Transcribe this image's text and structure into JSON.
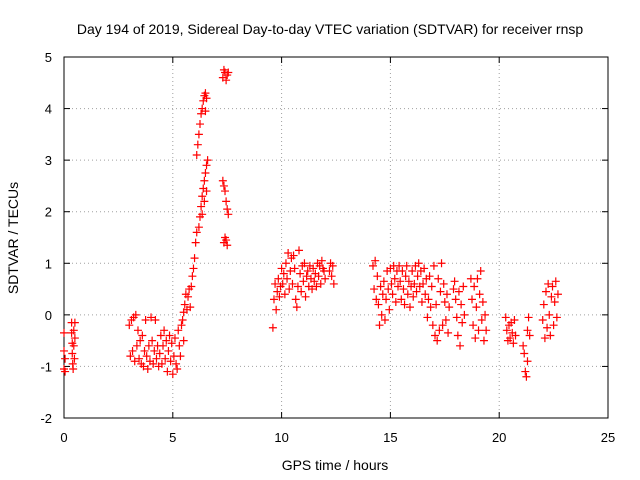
{
  "chart_data": {
    "type": "scatter",
    "title": "Day 194 of 2019, Sidereal Day-to-day VTEC variation (SDTVAR) for receiver rnsp",
    "xlabel": "GPS time / hours",
    "ylabel": "SDTVAR / TECUs",
    "xlim": [
      0,
      25
    ],
    "ylim": [
      -2,
      5
    ],
    "xticks": [
      "0",
      "5",
      "10",
      "15",
      "20",
      "25"
    ],
    "yticks": [
      "-2",
      "-1",
      "0",
      "1",
      "2",
      "3",
      "4",
      "5"
    ],
    "grid": true,
    "marker": "+",
    "series": [
      {
        "name": "SDTVAR",
        "color": "#ff0000",
        "points": [
          [
            0.0,
            -0.35
          ],
          [
            0.0,
            -0.7
          ],
          [
            0.0,
            -1.05
          ],
          [
            0.05,
            -0.85
          ],
          [
            0.05,
            -1.1
          ],
          [
            0.35,
            -0.15
          ],
          [
            0.35,
            -0.35
          ],
          [
            0.38,
            -0.55
          ],
          [
            0.38,
            -0.75
          ],
          [
            0.4,
            -0.95
          ],
          [
            0.42,
            -1.05
          ],
          [
            0.45,
            -0.6
          ],
          [
            0.45,
            -0.3
          ],
          [
            0.5,
            -0.15
          ],
          [
            0.5,
            -0.45
          ],
          [
            0.48,
            -0.85
          ],
          [
            3.0,
            -0.2
          ],
          [
            3.05,
            -0.8
          ],
          [
            3.1,
            -0.1
          ],
          [
            3.15,
            -0.7
          ],
          [
            3.2,
            -0.05
          ],
          [
            3.25,
            -0.9
          ],
          [
            3.3,
            0.0
          ],
          [
            3.35,
            -0.6
          ],
          [
            3.4,
            -0.3
          ],
          [
            3.45,
            -0.85
          ],
          [
            3.5,
            -0.5
          ],
          [
            3.55,
            -0.95
          ],
          [
            3.6,
            -0.4
          ],
          [
            3.65,
            -1.0
          ],
          [
            3.7,
            -0.7
          ],
          [
            3.75,
            -0.1
          ],
          [
            3.8,
            -0.8
          ],
          [
            3.85,
            -1.05
          ],
          [
            3.9,
            -0.6
          ],
          [
            3.95,
            -0.9
          ],
          [
            4.0,
            -0.05
          ],
          [
            4.05,
            -0.5
          ],
          [
            4.1,
            -0.95
          ],
          [
            4.15,
            -0.7
          ],
          [
            4.2,
            -0.1
          ],
          [
            4.25,
            -0.85
          ],
          [
            4.3,
            -0.6
          ],
          [
            4.35,
            -1.0
          ],
          [
            4.4,
            -0.75
          ],
          [
            4.45,
            -0.4
          ],
          [
            4.5,
            -0.95
          ],
          [
            4.55,
            -0.6
          ],
          [
            4.6,
            -0.3
          ],
          [
            4.65,
            -0.85
          ],
          [
            4.7,
            -0.5
          ],
          [
            4.75,
            -1.1
          ],
          [
            4.8,
            -0.7
          ],
          [
            4.85,
            -0.4
          ],
          [
            4.9,
            -0.9
          ],
          [
            4.95,
            -0.55
          ],
          [
            5.0,
            -1.15
          ],
          [
            5.05,
            -0.8
          ],
          [
            5.1,
            -0.45
          ],
          [
            5.15,
            -0.95
          ],
          [
            5.2,
            -1.05
          ],
          [
            5.25,
            -0.3
          ],
          [
            5.3,
            -0.6
          ],
          [
            5.35,
            -0.8
          ],
          [
            5.4,
            -0.2
          ],
          [
            5.45,
            -0.1
          ],
          [
            5.5,
            -0.5
          ],
          [
            5.5,
            0.05
          ],
          [
            5.55,
            0.2
          ],
          [
            5.6,
            0.4
          ],
          [
            5.65,
            0.1
          ],
          [
            5.7,
            0.35
          ],
          [
            5.75,
            0.5
          ],
          [
            5.8,
            0.15
          ],
          [
            5.85,
            0.55
          ],
          [
            5.9,
            0.75
          ],
          [
            5.95,
            0.9
          ],
          [
            6.0,
            1.1
          ],
          [
            6.05,
            1.4
          ],
          [
            6.1,
            1.6
          ],
          [
            6.1,
            3.1
          ],
          [
            6.15,
            3.3
          ],
          [
            6.2,
            3.5
          ],
          [
            6.25,
            3.7
          ],
          [
            6.3,
            3.9
          ],
          [
            6.35,
            4.0
          ],
          [
            6.4,
            4.15
          ],
          [
            6.45,
            4.25
          ],
          [
            6.5,
            4.3
          ],
          [
            6.55,
            4.2
          ],
          [
            6.5,
            3.95
          ],
          [
            6.2,
            1.7
          ],
          [
            6.25,
            1.9
          ],
          [
            6.3,
            2.1
          ],
          [
            6.35,
            2.3
          ],
          [
            6.4,
            2.45
          ],
          [
            6.45,
            2.6
          ],
          [
            6.5,
            2.75
          ],
          [
            6.55,
            2.9
          ],
          [
            6.6,
            3.0
          ],
          [
            6.55,
            2.4
          ],
          [
            6.45,
            2.2
          ],
          [
            6.35,
            1.95
          ],
          [
            7.3,
            4.6
          ],
          [
            7.35,
            4.75
          ],
          [
            7.4,
            4.7
          ],
          [
            7.45,
            4.55
          ],
          [
            7.5,
            4.65
          ],
          [
            7.55,
            4.7
          ],
          [
            7.3,
            2.6
          ],
          [
            7.35,
            2.5
          ],
          [
            7.4,
            2.4
          ],
          [
            7.45,
            2.2
          ],
          [
            7.5,
            2.05
          ],
          [
            7.55,
            1.95
          ],
          [
            7.35,
            1.4
          ],
          [
            7.4,
            1.5
          ],
          [
            7.45,
            1.45
          ],
          [
            7.5,
            1.35
          ],
          [
            9.6,
            -0.25
          ],
          [
            9.65,
            0.3
          ],
          [
            9.7,
            0.6
          ],
          [
            9.75,
            0.1
          ],
          [
            9.8,
            0.45
          ],
          [
            9.85,
            0.7
          ],
          [
            9.9,
            0.35
          ],
          [
            9.95,
            0.55
          ],
          [
            10.0,
            0.9
          ],
          [
            10.05,
            0.6
          ],
          [
            10.1,
            0.8
          ],
          [
            10.15,
            0.4
          ],
          [
            10.2,
            1.0
          ],
          [
            10.25,
            0.7
          ],
          [
            10.3,
            1.2
          ],
          [
            10.35,
            0.5
          ],
          [
            10.4,
            0.85
          ],
          [
            10.45,
            1.1
          ],
          [
            10.5,
            0.6
          ],
          [
            10.55,
            1.15
          ],
          [
            10.6,
            0.9
          ],
          [
            10.65,
            0.3
          ],
          [
            10.7,
            0.15
          ],
          [
            10.75,
            0.55
          ],
          [
            10.8,
            1.25
          ],
          [
            10.85,
            0.8
          ],
          [
            10.9,
            0.45
          ],
          [
            10.95,
            0.95
          ],
          [
            11.0,
            0.65
          ],
          [
            11.05,
            1.0
          ],
          [
            11.1,
            0.35
          ],
          [
            11.15,
            0.75
          ],
          [
            11.2,
            0.85
          ],
          [
            11.25,
            0.55
          ],
          [
            11.3,
            0.95
          ],
          [
            11.35,
            0.7
          ],
          [
            11.4,
            0.5
          ],
          [
            11.45,
            0.9
          ],
          [
            11.5,
            0.65
          ],
          [
            11.55,
            0.8
          ],
          [
            11.6,
            0.55
          ],
          [
            11.65,
            1.0
          ],
          [
            11.7,
            0.75
          ],
          [
            11.75,
            0.95
          ],
          [
            11.8,
            0.6
          ],
          [
            11.85,
            1.05
          ],
          [
            11.9,
            0.9
          ],
          [
            11.95,
            0.85
          ],
          [
            12.0,
            0.7
          ],
          [
            12.2,
            0.85
          ],
          [
            12.25,
            1.0
          ],
          [
            12.3,
            0.75
          ],
          [
            12.35,
            0.95
          ],
          [
            12.4,
            0.6
          ],
          [
            14.2,
            0.95
          ],
          [
            14.25,
            0.5
          ],
          [
            14.3,
            1.05
          ],
          [
            14.35,
            0.3
          ],
          [
            14.4,
            0.75
          ],
          [
            14.45,
            0.2
          ],
          [
            14.5,
            -0.2
          ],
          [
            14.55,
            0.55
          ],
          [
            14.6,
            0.0
          ],
          [
            14.65,
            0.4
          ],
          [
            14.7,
            0.65
          ],
          [
            14.75,
            -0.1
          ],
          [
            14.8,
            0.3
          ],
          [
            14.85,
            0.85
          ],
          [
            14.9,
            0.5
          ],
          [
            14.95,
            0.1
          ],
          [
            15.0,
            0.9
          ],
          [
            15.05,
            0.6
          ],
          [
            15.1,
            0.4
          ],
          [
            15.15,
            0.95
          ],
          [
            15.2,
            0.7
          ],
          [
            15.25,
            0.25
          ],
          [
            15.3,
            0.85
          ],
          [
            15.35,
            0.55
          ],
          [
            15.4,
            0.95
          ],
          [
            15.45,
            0.65
          ],
          [
            15.5,
            0.3
          ],
          [
            15.55,
            0.85
          ],
          [
            15.6,
            0.5
          ],
          [
            15.65,
            0.2
          ],
          [
            15.7,
            0.75
          ],
          [
            15.75,
            0.95
          ],
          [
            15.8,
            0.4
          ],
          [
            15.85,
            0.65
          ],
          [
            15.9,
            0.15
          ],
          [
            15.95,
            0.55
          ],
          [
            16.0,
            0.85
          ],
          [
            16.05,
            0.35
          ],
          [
            16.1,
            0.6
          ],
          [
            16.15,
            0.95
          ],
          [
            16.2,
            0.45
          ],
          [
            16.25,
            0.75
          ],
          [
            16.3,
            1.0
          ],
          [
            16.35,
            0.55
          ],
          [
            16.4,
            0.85
          ],
          [
            16.45,
            0.25
          ],
          [
            16.5,
            0.6
          ],
          [
            16.55,
            0.9
          ],
          [
            16.6,
            0.4
          ],
          [
            16.65,
            0.7
          ],
          [
            16.7,
            -0.05
          ],
          [
            16.75,
            0.3
          ],
          [
            16.8,
            0.75
          ],
          [
            16.85,
            0.15
          ],
          [
            16.9,
            0.55
          ],
          [
            16.95,
            -0.2
          ],
          [
            17.0,
            0.95
          ],
          [
            17.05,
            -0.4
          ],
          [
            17.1,
            0.2
          ],
          [
            17.15,
            -0.5
          ],
          [
            17.2,
            0.7
          ],
          [
            17.25,
            -0.3
          ],
          [
            17.3,
            0.45
          ],
          [
            17.35,
            1.0
          ],
          [
            17.4,
            -0.2
          ],
          [
            17.45,
            0.6
          ],
          [
            17.5,
            0.25
          ],
          [
            17.55,
            -0.1
          ],
          [
            17.6,
            0.4
          ],
          [
            17.65,
            -0.35
          ],
          [
            17.7,
            0.15
          ],
          [
            17.9,
            0.5
          ],
          [
            17.95,
            0.65
          ],
          [
            18.0,
            0.3
          ],
          [
            18.05,
            -0.05
          ],
          [
            18.1,
            -0.4
          ],
          [
            18.15,
            0.45
          ],
          [
            18.2,
            -0.6
          ],
          [
            18.25,
            0.2
          ],
          [
            18.3,
            -0.15
          ],
          [
            18.35,
            0.55
          ],
          [
            18.4,
            0.0
          ],
          [
            18.7,
            0.7
          ],
          [
            18.75,
            0.3
          ],
          [
            18.8,
            -0.2
          ],
          [
            18.85,
            0.55
          ],
          [
            18.9,
            -0.45
          ],
          [
            18.95,
            0.15
          ],
          [
            19.0,
            0.7
          ],
          [
            19.05,
            -0.3
          ],
          [
            19.1,
            0.4
          ],
          [
            19.15,
            0.85
          ],
          [
            19.2,
            -0.1
          ],
          [
            19.25,
            0.25
          ],
          [
            19.3,
            -0.5
          ],
          [
            19.35,
            0.0
          ],
          [
            19.4,
            -0.3
          ],
          [
            20.3,
            -0.05
          ],
          [
            20.35,
            -0.3
          ],
          [
            20.4,
            -0.5
          ],
          [
            20.45,
            -0.2
          ],
          [
            20.5,
            -0.45
          ],
          [
            20.55,
            -0.15
          ],
          [
            20.6,
            -0.35
          ],
          [
            20.65,
            -0.55
          ],
          [
            20.7,
            -0.1
          ],
          [
            20.75,
            -0.4
          ],
          [
            21.1,
            -0.6
          ],
          [
            21.15,
            -0.75
          ],
          [
            21.2,
            -1.1
          ],
          [
            21.25,
            -1.2
          ],
          [
            21.3,
            -0.9
          ],
          [
            21.35,
            -0.05
          ],
          [
            21.4,
            -0.4
          ],
          [
            21.3,
            -0.3
          ],
          [
            22.0,
            -0.1
          ],
          [
            22.05,
            0.2
          ],
          [
            22.1,
            -0.45
          ],
          [
            22.15,
            0.45
          ],
          [
            22.2,
            -0.25
          ],
          [
            22.25,
            0.6
          ],
          [
            22.3,
            0.0
          ],
          [
            22.35,
            -0.4
          ],
          [
            22.4,
            0.35
          ],
          [
            22.45,
            0.55
          ],
          [
            22.5,
            -0.2
          ],
          [
            22.55,
            0.25
          ],
          [
            22.6,
            0.65
          ],
          [
            22.65,
            -0.05
          ],
          [
            22.7,
            0.4
          ]
        ]
      }
    ]
  }
}
